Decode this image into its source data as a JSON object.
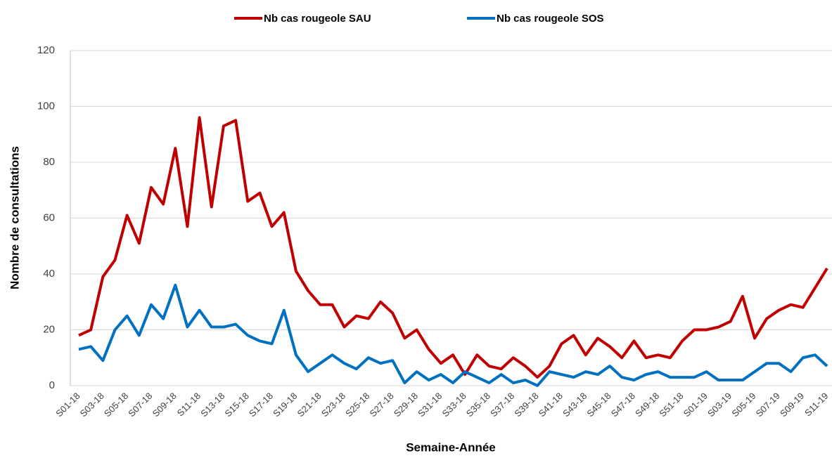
{
  "chart_data": {
    "type": "line",
    "x_label": "Semaine-Année",
    "y_label": "Nombre de consultations",
    "categories": [
      "S01-18",
      null,
      "S03-18",
      null,
      "S05-18",
      null,
      "S07-18",
      null,
      "S09-18",
      null,
      "S11-18",
      null,
      "S13-18",
      null,
      "S15-18",
      null,
      "S17-18",
      null,
      "S19-18",
      null,
      "S21-18",
      null,
      "S23-18",
      null,
      "S25-18",
      null,
      "S27-18",
      null,
      "S29-18",
      null,
      "S31-18",
      null,
      "S33-18",
      null,
      "S35-18",
      null,
      "S37-18",
      null,
      "S39-18",
      null,
      "S41-18",
      null,
      "S43-18",
      null,
      "S45-18",
      null,
      "S47-18",
      null,
      "S49-18",
      null,
      "S51-18",
      null,
      "S01-19",
      null,
      "S03-19",
      null,
      "S05-19",
      null,
      "S07-19",
      null,
      "S09-19",
      null,
      "S11-19"
    ],
    "series": [
      {
        "name": "Nb cas rougeole SAU",
        "color": "#c00000",
        "values": [
          18,
          20,
          39,
          45,
          61,
          51,
          71,
          65,
          85,
          57,
          96,
          64,
          93,
          95,
          66,
          69,
          57,
          62,
          41,
          34,
          29,
          29,
          21,
          25,
          24,
          30,
          26,
          17,
          20,
          13,
          8,
          11,
          4,
          11,
          7,
          6,
          10,
          7,
          3,
          7,
          15,
          18,
          11,
          17,
          14,
          10,
          16,
          10,
          11,
          10,
          16,
          20,
          20,
          21,
          23,
          32,
          17,
          24,
          27,
          29,
          28,
          35,
          42
        ]
      },
      {
        "name": "Nb cas rougeole SOS",
        "color": "#0070c0",
        "values": [
          13,
          14,
          9,
          20,
          25,
          18,
          29,
          24,
          36,
          21,
          27,
          21,
          21,
          22,
          18,
          16,
          15,
          27,
          11,
          5,
          8,
          11,
          8,
          6,
          10,
          8,
          9,
          1,
          5,
          2,
          4,
          1,
          5,
          3,
          1,
          4,
          1,
          2,
          0,
          5,
          4,
          3,
          5,
          4,
          7,
          3,
          2,
          4,
          5,
          3,
          3,
          3,
          5,
          2,
          2,
          2,
          5,
          8,
          8,
          5,
          10,
          11,
          7
        ]
      }
    ],
    "ylim": [
      0,
      120
    ],
    "yticks": [
      0,
      20,
      40,
      60,
      80,
      100,
      120
    ],
    "grid": true,
    "legend": "top"
  }
}
